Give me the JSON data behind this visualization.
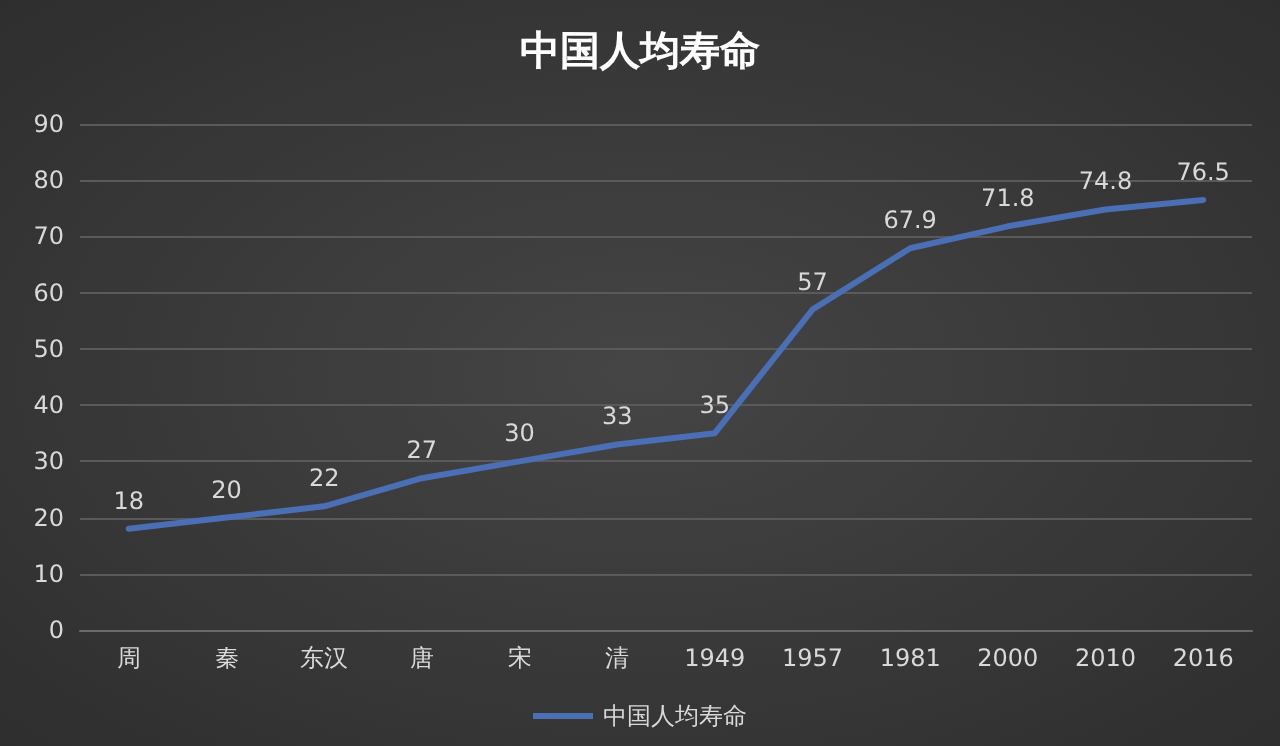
{
  "chart_data": {
    "type": "line",
    "title": "中国人均寿命",
    "categories": [
      "周",
      "秦",
      "东汉",
      "唐",
      "宋",
      "清",
      "1949",
      "1957",
      "1981",
      "2000",
      "2010",
      "2016"
    ],
    "series": [
      {
        "name": "中国人均寿命",
        "color": "#4a6fb5",
        "values": [
          18,
          20,
          22,
          27,
          30,
          33,
          35,
          57,
          67.9,
          71.8,
          74.8,
          76.5
        ]
      }
    ],
    "ylim": [
      0,
      90
    ],
    "yticks": [
      0,
      10,
      20,
      30,
      40,
      50,
      60,
      70,
      80,
      90
    ],
    "grid": "y",
    "legend": "bottom",
    "data_labels": true,
    "marker": "none",
    "line_style": "solid"
  }
}
